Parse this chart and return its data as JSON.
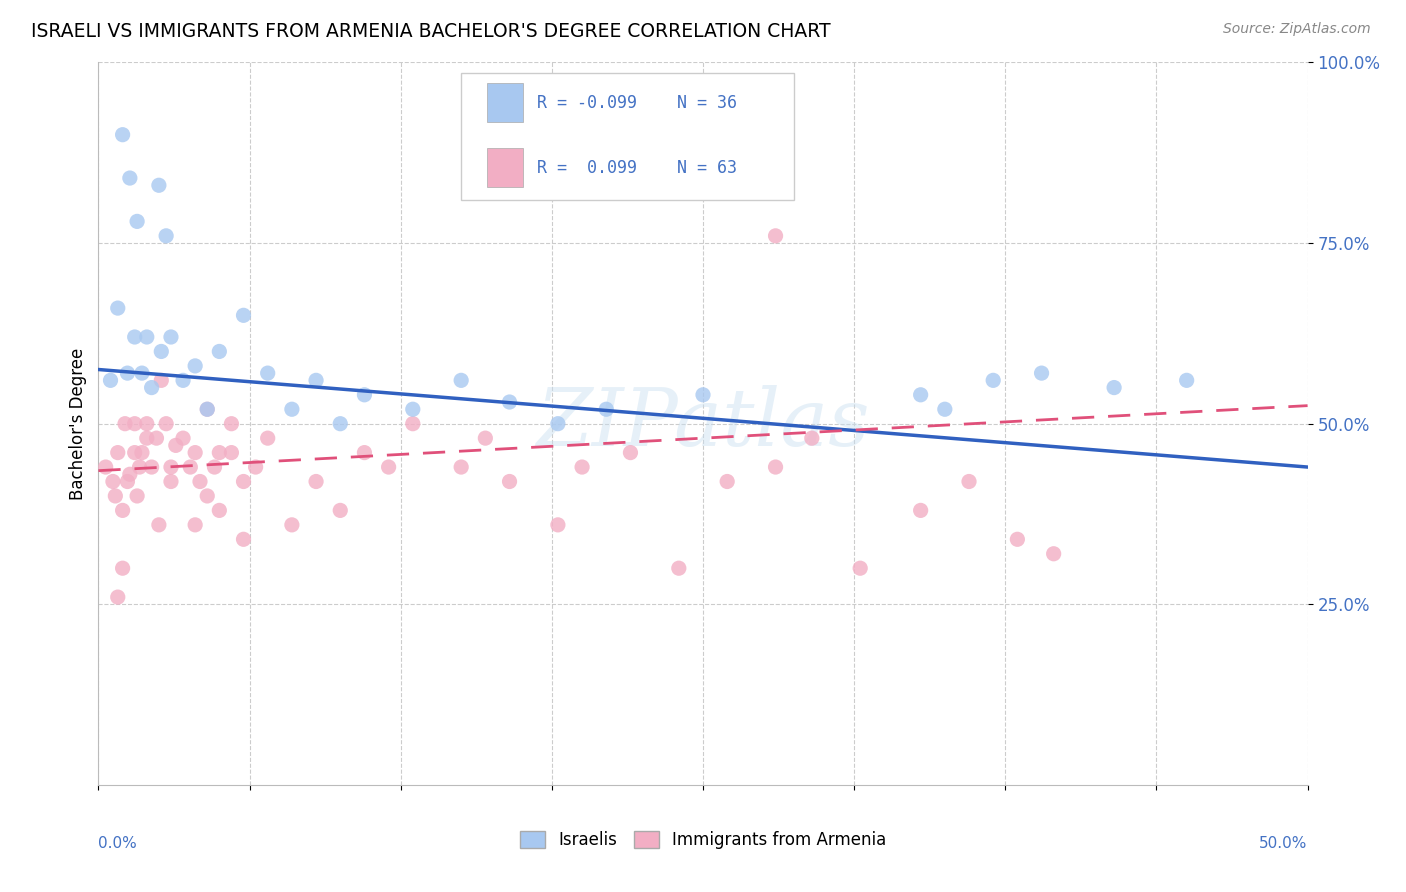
{
  "title": "ISRAELI VS IMMIGRANTS FROM ARMENIA BACHELOR'S DEGREE CORRELATION CHART",
  "source": "Source: ZipAtlas.com",
  "ylabel": "Bachelor's Degree",
  "color_israeli": "#a8c8f0",
  "color_armenia": "#f2aec4",
  "color_line_israeli": "#3060c0",
  "color_line_armenia": "#e0507a",
  "xlim": [
    0.0,
    0.5
  ],
  "ylim": [
    0.0,
    1.0
  ],
  "israelis_x": [
    0.01,
    0.013,
    0.016,
    0.02,
    0.025,
    0.028,
    0.005,
    0.008,
    0.012,
    0.015,
    0.018,
    0.022,
    0.026,
    0.03,
    0.035,
    0.04,
    0.045,
    0.05,
    0.06,
    0.07,
    0.08,
    0.09,
    0.1,
    0.11,
    0.13,
    0.15,
    0.17,
    0.19,
    0.21,
    0.25,
    0.37,
    0.39,
    0.35,
    0.42,
    0.45,
    0.34
  ],
  "israelis_y": [
    0.9,
    0.84,
    0.78,
    0.62,
    0.83,
    0.76,
    0.56,
    0.66,
    0.57,
    0.62,
    0.57,
    0.55,
    0.6,
    0.62,
    0.56,
    0.58,
    0.52,
    0.6,
    0.65,
    0.57,
    0.52,
    0.56,
    0.5,
    0.54,
    0.52,
    0.56,
    0.53,
    0.5,
    0.52,
    0.54,
    0.56,
    0.57,
    0.52,
    0.55,
    0.56,
    0.54
  ],
  "armenians_x": [
    0.003,
    0.006,
    0.007,
    0.008,
    0.01,
    0.011,
    0.012,
    0.013,
    0.015,
    0.016,
    0.017,
    0.018,
    0.02,
    0.022,
    0.024,
    0.026,
    0.028,
    0.03,
    0.032,
    0.035,
    0.038,
    0.04,
    0.042,
    0.045,
    0.048,
    0.05,
    0.055,
    0.06,
    0.065,
    0.07,
    0.08,
    0.09,
    0.1,
    0.11,
    0.12,
    0.13,
    0.15,
    0.16,
    0.17,
    0.19,
    0.2,
    0.22,
    0.24,
    0.26,
    0.28,
    0.295,
    0.315,
    0.34,
    0.36,
    0.38,
    0.395,
    0.04,
    0.045,
    0.05,
    0.055,
    0.06,
    0.025,
    0.03,
    0.02,
    0.015,
    0.01,
    0.008,
    0.28
  ],
  "armenians_y": [
    0.44,
    0.42,
    0.4,
    0.46,
    0.38,
    0.5,
    0.42,
    0.43,
    0.46,
    0.4,
    0.44,
    0.46,
    0.5,
    0.44,
    0.48,
    0.56,
    0.5,
    0.42,
    0.47,
    0.48,
    0.44,
    0.46,
    0.42,
    0.52,
    0.44,
    0.46,
    0.5,
    0.42,
    0.44,
    0.48,
    0.36,
    0.42,
    0.38,
    0.46,
    0.44,
    0.5,
    0.44,
    0.48,
    0.42,
    0.36,
    0.44,
    0.46,
    0.3,
    0.42,
    0.44,
    0.48,
    0.3,
    0.38,
    0.42,
    0.34,
    0.32,
    0.36,
    0.4,
    0.38,
    0.46,
    0.34,
    0.36,
    0.44,
    0.48,
    0.5,
    0.3,
    0.26,
    0.76
  ],
  "israeli_line_x": [
    0.0,
    0.5
  ],
  "israeli_line_y": [
    0.575,
    0.44
  ],
  "armenia_line_x": [
    0.0,
    0.5
  ],
  "armenia_line_y": [
    0.435,
    0.525
  ]
}
